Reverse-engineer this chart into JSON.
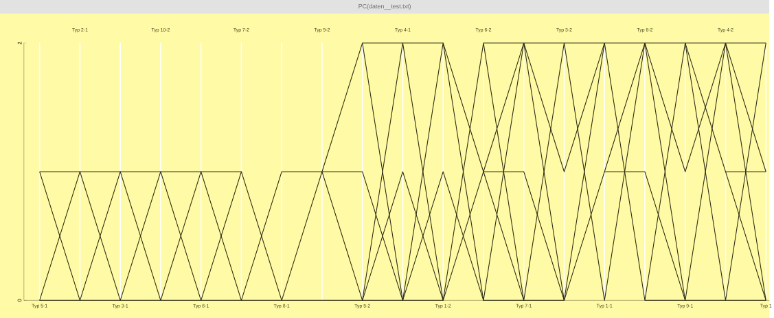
{
  "chart_data": {
    "type": "line",
    "title": "PC(daten__test.txt)",
    "categories": [
      "Typ 5-1",
      "Typ 2-1",
      "Typ 3-1",
      "Typ 10-2",
      "Typ 6-1",
      "Typ 7-2",
      "Typ 8-1",
      "Typ 9-2",
      "Typ 5-2",
      "Typ 4-1",
      "Typ 1-2",
      "Typ 6-2",
      "Typ 7-1",
      "Typ 3-2",
      "Typ 1-1",
      "Typ 8-2",
      "Typ 9-1",
      "Typ 4-2",
      "Typ 1"
    ],
    "ylim": [
      0,
      2
    ],
    "yticks": [
      0,
      2
    ],
    "grid": "x",
    "marker": "none",
    "line_style": "solid",
    "series": [
      {
        "color": "#2e2e10",
        "values": [
          1,
          0,
          1,
          0,
          1,
          0,
          1,
          1,
          2,
          2,
          2,
          1,
          1,
          0,
          1,
          1,
          0,
          0,
          0
        ]
      },
      {
        "color": "#2e2e11",
        "values": [
          0,
          1,
          0,
          1,
          0,
          1,
          0,
          1,
          0,
          2,
          0,
          2,
          0,
          2,
          0,
          2,
          0,
          2,
          0
        ]
      },
      {
        "color": "#2e2e12",
        "values": [
          1,
          1,
          1,
          1,
          1,
          1,
          null,
          null,
          null,
          null,
          null,
          null,
          null,
          null,
          null,
          null,
          null,
          null,
          null
        ]
      },
      {
        "color": "#2e2e13",
        "values": [
          0,
          0,
          0,
          0,
          0,
          0,
          0,
          0,
          0,
          0,
          2,
          0,
          2,
          1,
          2,
          0,
          2,
          1,
          0
        ]
      },
      {
        "color": "#2e2e14",
        "values": [
          null,
          null,
          null,
          null,
          null,
          null,
          null,
          1,
          1,
          0,
          1,
          0,
          0,
          0,
          2,
          2,
          2,
          2,
          2
        ]
      },
      {
        "color": "#2e2e15",
        "values": [
          null,
          null,
          null,
          null,
          null,
          null,
          null,
          null,
          2,
          0,
          0,
          1,
          2,
          2,
          2,
          null,
          null,
          null,
          null
        ]
      },
      {
        "color": "#2e2e16",
        "values": [
          null,
          null,
          null,
          null,
          null,
          null,
          null,
          null,
          0,
          1,
          0,
          null,
          null,
          null,
          null,
          null,
          null,
          null,
          null
        ]
      },
      {
        "color": "#2e2e17",
        "values": [
          null,
          null,
          null,
          null,
          null,
          null,
          null,
          null,
          null,
          null,
          null,
          2,
          2,
          0,
          null,
          null,
          null,
          null,
          null
        ]
      },
      {
        "color": "#2e2e18",
        "values": [
          null,
          null,
          null,
          null,
          null,
          null,
          null,
          null,
          null,
          null,
          null,
          1,
          0,
          null,
          null,
          null,
          null,
          null,
          null
        ]
      },
      {
        "color": "#2e2e19",
        "values": [
          null,
          null,
          null,
          null,
          null,
          null,
          null,
          null,
          null,
          null,
          null,
          null,
          null,
          null,
          1,
          2,
          1,
          2,
          1
        ]
      },
      {
        "color": "#2e2e1a",
        "values": [
          null,
          null,
          null,
          null,
          null,
          null,
          null,
          null,
          null,
          null,
          null,
          null,
          null,
          null,
          null,
          0,
          0,
          null,
          null
        ]
      },
      {
        "color": "#2e2e1b",
        "values": [
          null,
          null,
          null,
          null,
          null,
          null,
          null,
          null,
          null,
          null,
          null,
          null,
          null,
          null,
          null,
          null,
          2,
          0,
          2
        ]
      },
      {
        "color": "#2e2e1c",
        "values": [
          null,
          null,
          null,
          null,
          null,
          null,
          null,
          null,
          null,
          null,
          null,
          null,
          null,
          null,
          null,
          null,
          null,
          1,
          1
        ]
      }
    ]
  }
}
